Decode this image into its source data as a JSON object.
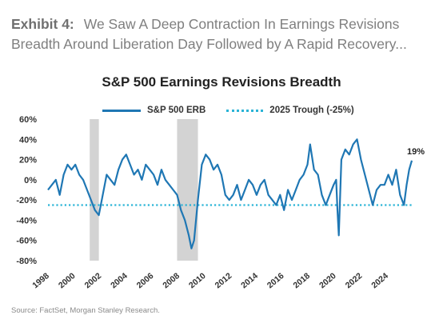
{
  "exhibit": {
    "label": "Exhibit 4:",
    "text": "We Saw A Deep Contraction In Earnings Revisions Breadth Around Liberation Day Followed by A Rapid Recovery..."
  },
  "source": "Source: FactSet, Morgan Stanley Research.",
  "colors": {
    "series": "#1f77b4",
    "trough": "#2ab3d6",
    "recession": "#d3d3d3",
    "axis_text": "#333333"
  },
  "chart_data": {
    "type": "line",
    "title": "S&P 500 Earnings Revisions Breadth",
    "xlabel": "",
    "ylabel": "",
    "xlim": [
      1998.0,
      2025.9
    ],
    "ylim": [
      -80,
      60
    ],
    "y_ticks": [
      60,
      40,
      20,
      0,
      -20,
      -40,
      -60,
      -80
    ],
    "y_tick_labels": [
      "60%",
      "40%",
      "20%",
      "0%",
      "-20%",
      "-40%",
      "-60%",
      "-80%"
    ],
    "x_ticks": [
      1998,
      2000,
      2002,
      2004,
      2006,
      2008,
      2010,
      2012,
      2014,
      2016,
      2018,
      2020,
      2022,
      2024
    ],
    "x_tick_labels": [
      "1998",
      "2000",
      "2002",
      "2004",
      "2006",
      "2008",
      "2010",
      "2012",
      "2014",
      "2016",
      "2018",
      "2020",
      "2022",
      "2024"
    ],
    "grid": false,
    "legend": "top",
    "recessions": [
      [
        2001.2,
        2001.9
      ],
      [
        2007.9,
        2009.5
      ]
    ],
    "reference_line": {
      "name": "2025 Trough (-25%)",
      "y": -25,
      "style": "dotted"
    },
    "end_label": "19%",
    "series": [
      {
        "name": "S&P 500 ERB",
        "x": [
          1998.0,
          1998.3,
          1998.6,
          1998.9,
          1999.2,
          1999.5,
          1999.8,
          2000.1,
          2000.4,
          2000.7,
          2001.0,
          2001.3,
          2001.6,
          2001.9,
          2002.2,
          2002.5,
          2002.8,
          2003.1,
          2003.4,
          2003.7,
          2004.0,
          2004.3,
          2004.6,
          2004.9,
          2005.2,
          2005.5,
          2005.8,
          2006.1,
          2006.4,
          2006.7,
          2007.0,
          2007.3,
          2007.6,
          2007.9,
          2008.2,
          2008.5,
          2008.8,
          2009.0,
          2009.2,
          2009.5,
          2009.8,
          2010.1,
          2010.4,
          2010.7,
          2011.0,
          2011.3,
          2011.6,
          2011.9,
          2012.2,
          2012.5,
          2012.8,
          2013.1,
          2013.4,
          2013.7,
          2014.0,
          2014.3,
          2014.6,
          2014.9,
          2015.2,
          2015.5,
          2015.8,
          2016.1,
          2016.4,
          2016.7,
          2017.0,
          2017.3,
          2017.6,
          2017.9,
          2018.1,
          2018.4,
          2018.7,
          2019.0,
          2019.3,
          2019.6,
          2019.9,
          2020.1,
          2020.2,
          2020.3,
          2020.5,
          2020.8,
          2021.1,
          2021.4,
          2021.7,
          2022.0,
          2022.3,
          2022.6,
          2022.9,
          2023.2,
          2023.5,
          2023.8,
          2024.1,
          2024.4,
          2024.7,
          2025.0,
          2025.3,
          2025.5,
          2025.7,
          2025.9
        ],
        "values": [
          -10,
          -5,
          0,
          -15,
          5,
          15,
          10,
          15,
          5,
          0,
          -10,
          -20,
          -30,
          -35,
          -15,
          5,
          0,
          -5,
          10,
          20,
          25,
          15,
          5,
          10,
          0,
          15,
          10,
          5,
          -5,
          10,
          0,
          -5,
          -10,
          -15,
          -30,
          -40,
          -55,
          -68,
          -60,
          -20,
          15,
          25,
          20,
          10,
          15,
          5,
          -15,
          -20,
          -15,
          -5,
          -20,
          -10,
          0,
          -5,
          -15,
          -5,
          0,
          -15,
          -20,
          -25,
          -15,
          -30,
          -10,
          -20,
          -10,
          0,
          5,
          15,
          35,
          10,
          5,
          -15,
          -25,
          -15,
          -5,
          0,
          -30,
          -55,
          20,
          30,
          25,
          35,
          40,
          20,
          5,
          -10,
          -25,
          -10,
          -5,
          -5,
          5,
          -5,
          10,
          -15,
          -25,
          -5,
          10,
          19
        ]
      }
    ]
  }
}
